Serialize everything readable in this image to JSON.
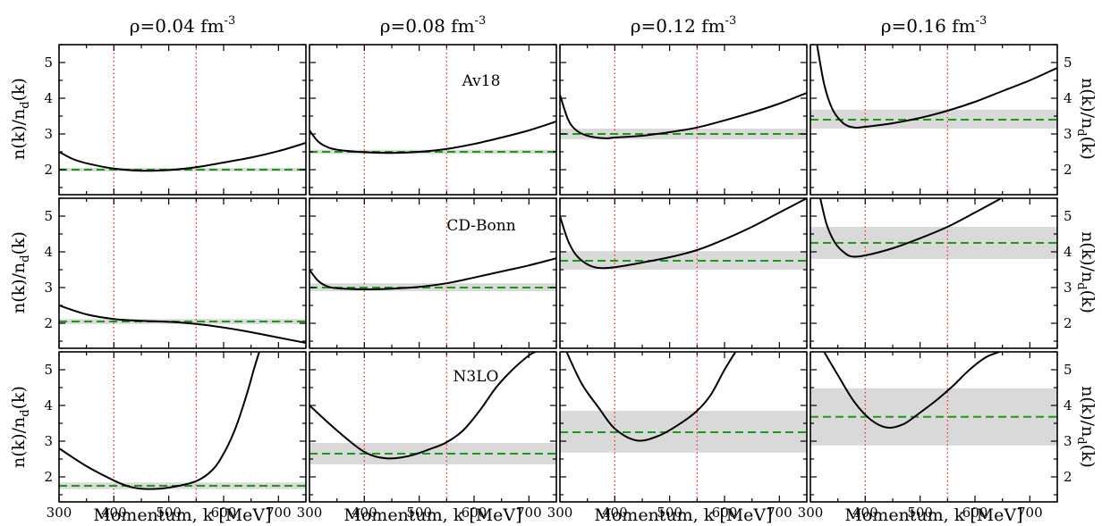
{
  "figure": {
    "column_titles": [
      {
        "base": "ρ=0.04 fm",
        "sup": "-3"
      },
      {
        "base": "ρ=0.08 fm",
        "sup": "-3"
      },
      {
        "base": "ρ=0.12 fm",
        "sup": "-3"
      },
      {
        "base": "ρ=0.16 fm",
        "sup": "-3"
      }
    ],
    "row_labels": [
      "Av18",
      "CD-Bonn",
      "N3LO"
    ],
    "xlabel": "Momentum, k [MeV]",
    "ylabel": {
      "pre": "n(k)/n",
      "sub": "d",
      "post": "(k)"
    },
    "colors": {
      "curve": "#000000",
      "plateau": "#1a9a1a",
      "cut": "#ff2020",
      "band": "#d9d9d9"
    }
  },
  "chart_data": {
    "type": "line",
    "panel_grid": {
      "rows": 3,
      "cols": 4
    },
    "xlim": [
      300,
      750
    ],
    "ylim": [
      1.3,
      5.5
    ],
    "xticks": [
      300,
      400,
      500,
      600,
      700
    ],
    "yticks": [
      2,
      3,
      4,
      5
    ],
    "cut_lines_x": [
      400,
      550
    ],
    "panels": [
      {
        "row": 0,
        "col": 0,
        "model": "Av18",
        "density": "0.04",
        "plateau": 2.0,
        "band": [
          1.95,
          2.05
        ],
        "curve": {
          "x": [
            300,
            325,
            350,
            400,
            450,
            500,
            550,
            600,
            650,
            700,
            750
          ],
          "y": [
            2.5,
            2.3,
            2.18,
            2.03,
            1.97,
            1.99,
            2.07,
            2.2,
            2.34,
            2.52,
            2.75
          ]
        }
      },
      {
        "row": 0,
        "col": 1,
        "model": "Av18",
        "density": "0.08",
        "plateau": 2.5,
        "band": [
          2.44,
          2.56
        ],
        "curve": {
          "x": [
            300,
            315,
            330,
            350,
            400,
            450,
            500,
            550,
            600,
            650,
            700,
            750
          ],
          "y": [
            3.1,
            2.8,
            2.65,
            2.56,
            2.49,
            2.47,
            2.5,
            2.58,
            2.72,
            2.9,
            3.1,
            3.35
          ]
        }
      },
      {
        "row": 0,
        "col": 2,
        "model": "Av18",
        "density": "0.12",
        "plateau": 3.0,
        "band": [
          2.85,
          3.15
        ],
        "curve": {
          "x": [
            300,
            315,
            330,
            350,
            380,
            400,
            450,
            500,
            550,
            600,
            650,
            700,
            750
          ],
          "y": [
            4.1,
            3.4,
            3.1,
            2.95,
            2.88,
            2.9,
            2.95,
            3.05,
            3.18,
            3.38,
            3.6,
            3.85,
            4.15
          ]
        }
      },
      {
        "row": 0,
        "col": 3,
        "model": "Av18",
        "density": "0.16",
        "plateau": 3.4,
        "band": [
          3.15,
          3.68
        ],
        "curve": {
          "x": [
            312,
            325,
            340,
            360,
            380,
            400,
            450,
            500,
            550,
            600,
            650,
            700,
            750
          ],
          "y": [
            5.5,
            4.4,
            3.7,
            3.3,
            3.18,
            3.2,
            3.3,
            3.45,
            3.65,
            3.9,
            4.2,
            4.5,
            4.85
          ]
        }
      },
      {
        "row": 1,
        "col": 0,
        "model": "CD-Bonn",
        "density": "0.04",
        "plateau": 2.05,
        "band": [
          1.98,
          2.12
        ],
        "curve": {
          "x": [
            300,
            350,
            400,
            450,
            500,
            550,
            600,
            650,
            700,
            750
          ],
          "y": [
            2.5,
            2.25,
            2.12,
            2.07,
            2.04,
            1.98,
            1.88,
            1.75,
            1.6,
            1.45
          ]
        }
      },
      {
        "row": 1,
        "col": 1,
        "model": "CD-Bonn",
        "density": "0.08",
        "plateau": 3.0,
        "band": [
          2.9,
          3.12
        ],
        "curve": {
          "x": [
            300,
            315,
            330,
            350,
            400,
            450,
            500,
            550,
            600,
            650,
            700,
            750
          ],
          "y": [
            3.5,
            3.2,
            3.05,
            2.98,
            2.95,
            2.97,
            3.02,
            3.12,
            3.28,
            3.45,
            3.62,
            3.82
          ]
        }
      },
      {
        "row": 1,
        "col": 2,
        "model": "CD-Bonn",
        "density": "0.12",
        "plateau": 3.75,
        "band": [
          3.5,
          4.02
        ],
        "curve": {
          "x": [
            300,
            315,
            330,
            350,
            370,
            400,
            450,
            500,
            550,
            600,
            650,
            700,
            750
          ],
          "y": [
            5.0,
            4.3,
            3.9,
            3.65,
            3.55,
            3.57,
            3.7,
            3.85,
            4.05,
            4.35,
            4.7,
            5.1,
            5.5
          ]
        }
      },
      {
        "row": 1,
        "col": 3,
        "model": "CD-Bonn",
        "density": "0.16",
        "plateau": 4.25,
        "band": [
          3.8,
          4.7
        ],
        "curve": {
          "x": [
            318,
            330,
            345,
            360,
            375,
            400,
            450,
            500,
            550,
            600,
            648
          ],
          "y": [
            5.5,
            4.75,
            4.25,
            4.0,
            3.87,
            3.9,
            4.1,
            4.38,
            4.7,
            5.1,
            5.5
          ]
        }
      },
      {
        "row": 2,
        "col": 0,
        "model": "N3LO",
        "density": "0.04",
        "plateau": 1.75,
        "band": [
          1.66,
          1.84
        ],
        "curve": {
          "x": [
            300,
            350,
            400,
            430,
            460,
            500,
            550,
            580,
            600,
            620,
            640,
            655,
            665
          ],
          "y": [
            2.8,
            2.3,
            1.9,
            1.72,
            1.66,
            1.7,
            1.88,
            2.2,
            2.65,
            3.3,
            4.2,
            5.0,
            5.5
          ]
        }
      },
      {
        "row": 2,
        "col": 1,
        "model": "N3LO",
        "density": "0.08",
        "plateau": 2.65,
        "band": [
          2.35,
          2.95
        ],
        "curve": {
          "x": [
            300,
            350,
            400,
            440,
            480,
            520,
            550,
            580,
            610,
            640,
            670,
            700,
            712
          ],
          "y": [
            4.0,
            3.3,
            2.7,
            2.52,
            2.58,
            2.78,
            2.97,
            3.3,
            3.85,
            4.5,
            5.0,
            5.4,
            5.5
          ]
        }
      },
      {
        "row": 2,
        "col": 2,
        "model": "N3LO",
        "density": "0.12",
        "plateau": 3.25,
        "band": [
          2.68,
          3.85
        ],
        "curve": {
          "x": [
            312,
            340,
            370,
            400,
            440,
            480,
            520,
            550,
            575,
            600,
            620
          ],
          "y": [
            5.5,
            4.6,
            3.95,
            3.35,
            3.02,
            3.15,
            3.5,
            3.85,
            4.3,
            5.0,
            5.5
          ]
        }
      },
      {
        "row": 2,
        "col": 3,
        "model": "N3LO",
        "density": "0.16",
        "plateau": 3.68,
        "band": [
          2.88,
          4.48
        ],
        "curve": {
          "x": [
            325,
            350,
            380,
            410,
            440,
            470,
            500,
            530,
            560,
            590,
            620,
            645
          ],
          "y": [
            5.5,
            4.85,
            4.1,
            3.6,
            3.38,
            3.48,
            3.8,
            4.15,
            4.55,
            5.0,
            5.35,
            5.5
          ]
        }
      }
    ]
  }
}
